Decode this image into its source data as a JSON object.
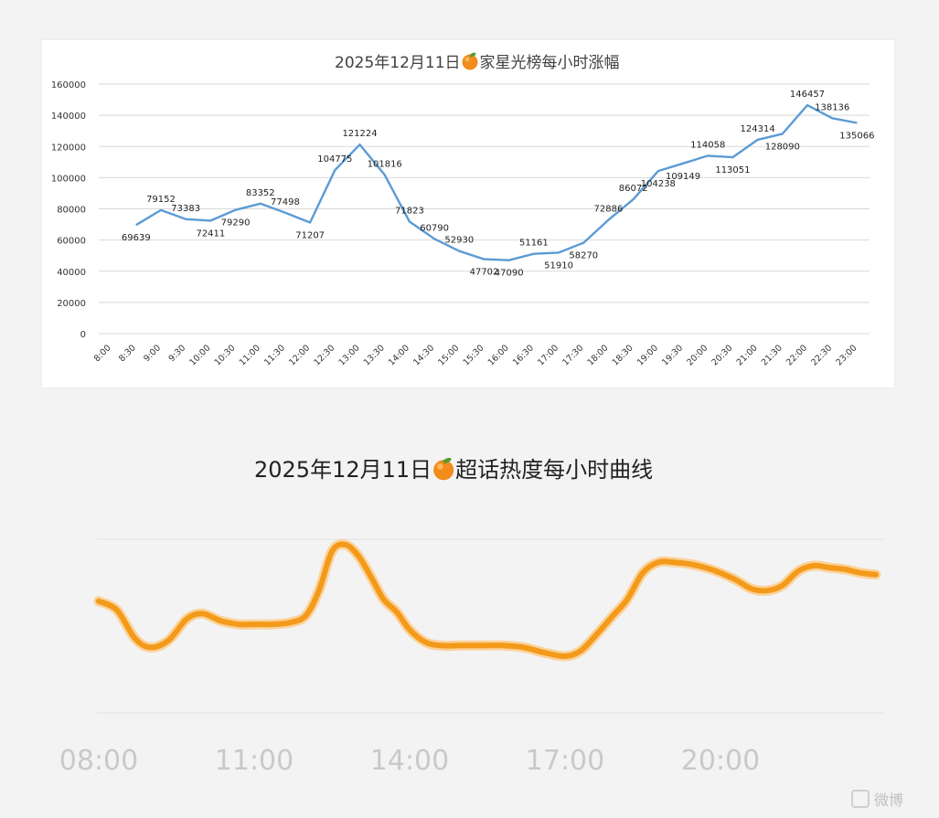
{
  "chart_data": [
    {
      "type": "line",
      "title": "2025年12月11日🍊家星光榜每小时涨幅",
      "title_parts": {
        "before": "2025年12月11日",
        "after": "家星光榜每小时涨幅"
      },
      "categories": [
        "8:00",
        "8:30",
        "9:00",
        "9:30",
        "10:00",
        "10:30",
        "11:00",
        "11:30",
        "12:00",
        "12:30",
        "13:00",
        "13:30",
        "14:00",
        "14:30",
        "15:00",
        "15:30",
        "16:00",
        "16:30",
        "17:00",
        "17:30",
        "18:00",
        "18:30",
        "19:00",
        "19:30",
        "20:00",
        "20:30",
        "21:00",
        "21:30",
        "22:00",
        "22:30",
        "23:00"
      ],
      "values": [
        null,
        69639,
        79152,
        73383,
        72411,
        79290,
        83352,
        77498,
        71207,
        104775,
        121224,
        101816,
        71823,
        60790,
        52930,
        47702,
        47090,
        51161,
        51910,
        58270,
        72886,
        86072,
        104238,
        109149,
        114058,
        113051,
        124314,
        128090,
        146457,
        138136,
        135066
      ],
      "ylim": [
        0,
        160000
      ],
      "yticks": [
        0,
        20000,
        40000,
        60000,
        80000,
        100000,
        120000,
        140000,
        160000
      ],
      "grid": true,
      "line_color": "#5b9bd5",
      "legend": "none"
    },
    {
      "type": "line",
      "title": "2025年12月11日🍊超话热度每小时曲线",
      "title_parts": {
        "before": "2025年12月11日",
        "after": "超话热度每小时曲线"
      },
      "x_ticks": [
        "08:00",
        "11:00",
        "14:00",
        "17:00",
        "20:00"
      ],
      "x": [
        8.0,
        8.35,
        8.7,
        9.0,
        9.35,
        9.7,
        10.0,
        10.35,
        10.7,
        11.0,
        11.35,
        11.7,
        12.0,
        12.25,
        12.5,
        12.75,
        13.0,
        13.25,
        13.5,
        13.75,
        14.0,
        14.3,
        14.6,
        15.0,
        15.4,
        15.8,
        16.2,
        16.6,
        17.0,
        17.3,
        17.6,
        17.9,
        18.2,
        18.5,
        18.8,
        19.1,
        19.4,
        19.7,
        20.0,
        20.3,
        20.6,
        20.9,
        21.2,
        21.5,
        21.8,
        22.1,
        22.4,
        22.7,
        23.0
      ],
      "y": [
        0.64,
        0.59,
        0.43,
        0.38,
        0.42,
        0.54,
        0.57,
        0.53,
        0.51,
        0.51,
        0.51,
        0.52,
        0.56,
        0.7,
        0.92,
        0.96,
        0.9,
        0.78,
        0.65,
        0.58,
        0.48,
        0.41,
        0.39,
        0.39,
        0.39,
        0.39,
        0.38,
        0.35,
        0.33,
        0.36,
        0.45,
        0.55,
        0.65,
        0.8,
        0.86,
        0.86,
        0.85,
        0.83,
        0.8,
        0.76,
        0.71,
        0.7,
        0.73,
        0.81,
        0.84,
        0.83,
        0.82,
        0.8,
        0.79
      ],
      "y_unit": "relative (no y-axis printed)",
      "line_color": "#f39a1a",
      "grid": true,
      "legend": "none"
    }
  ],
  "watermark": "微博"
}
